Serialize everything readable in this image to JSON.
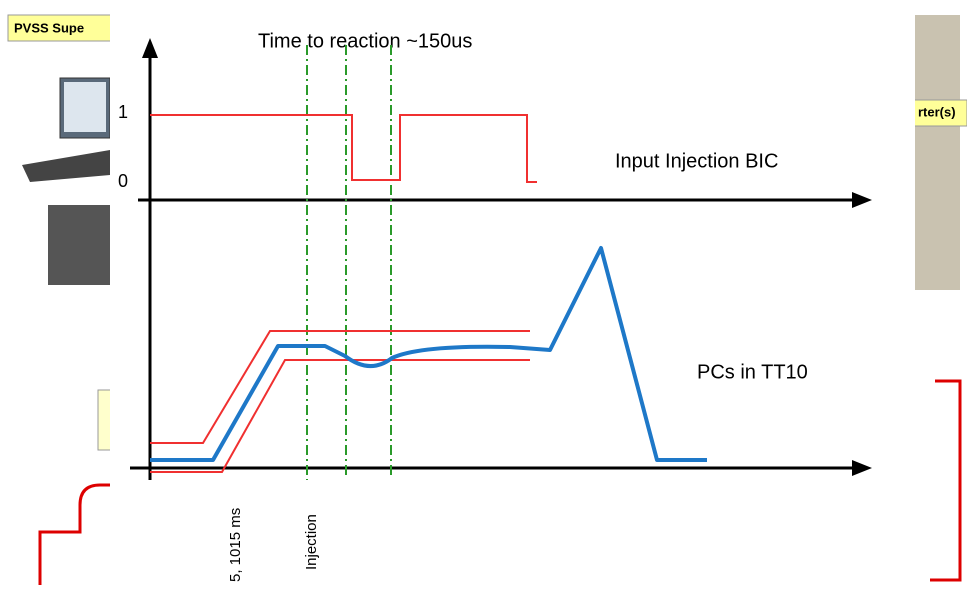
{
  "background": {
    "left_box": "PVSS Supe",
    "right_box": "rter(s)"
  },
  "diagram": {
    "title": "Time to reaction ~150us",
    "level_high": "1",
    "level_low": "0",
    "upper_label": "Input Injection BIC",
    "lower_label": "PCs in TT10",
    "time_label": "5, 1015 ms",
    "injection_label": "Injection"
  }
}
